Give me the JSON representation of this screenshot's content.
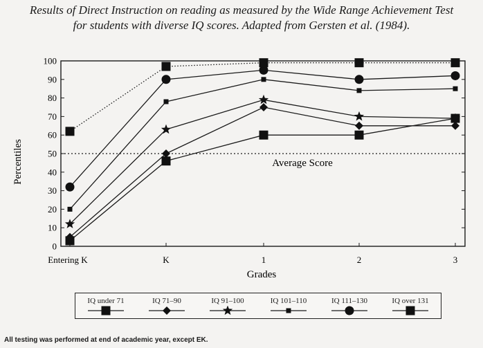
{
  "title_line1": "Results of Direct Instruction on reading as measured by the Wide Range Achievement Test",
  "title_line2": "for students with diverse IQ scores. Adapted from Gersten et al. (1984).",
  "footnote": "All testing was performed at end of academic year, except EK.",
  "chart_data": {
    "type": "line",
    "xlabel": "Grades",
    "ylabel": "Percentiles",
    "categories": [
      "Entering K",
      "K",
      "1",
      "2",
      "3"
    ],
    "ylim": [
      0,
      100
    ],
    "yticks": [
      0,
      10,
      20,
      30,
      40,
      50,
      60,
      70,
      80,
      90,
      100
    ],
    "reference_line": {
      "value": 50,
      "label": "Average Score"
    },
    "grid": false,
    "legend_position": "bottom",
    "series": [
      {
        "name": "IQ under 71",
        "marker": "square",
        "values": [
          3,
          46,
          60,
          60,
          69
        ]
      },
      {
        "name": "IQ 71–90",
        "marker": "diamond",
        "values": [
          5,
          50,
          75,
          65,
          65
        ]
      },
      {
        "name": "IQ 91–100",
        "marker": "star",
        "values": [
          12,
          63,
          79,
          70,
          69
        ]
      },
      {
        "name": "IQ 101–110",
        "marker": "small-square",
        "values": [
          20,
          78,
          90,
          84,
          85
        ]
      },
      {
        "name": "IQ 111–130",
        "marker": "circle",
        "values": [
          32,
          90,
          95,
          90,
          92
        ]
      },
      {
        "name": "IQ over 131",
        "marker": "square",
        "values": [
          62,
          97,
          99,
          99,
          99
        ],
        "dotted": true
      }
    ]
  }
}
